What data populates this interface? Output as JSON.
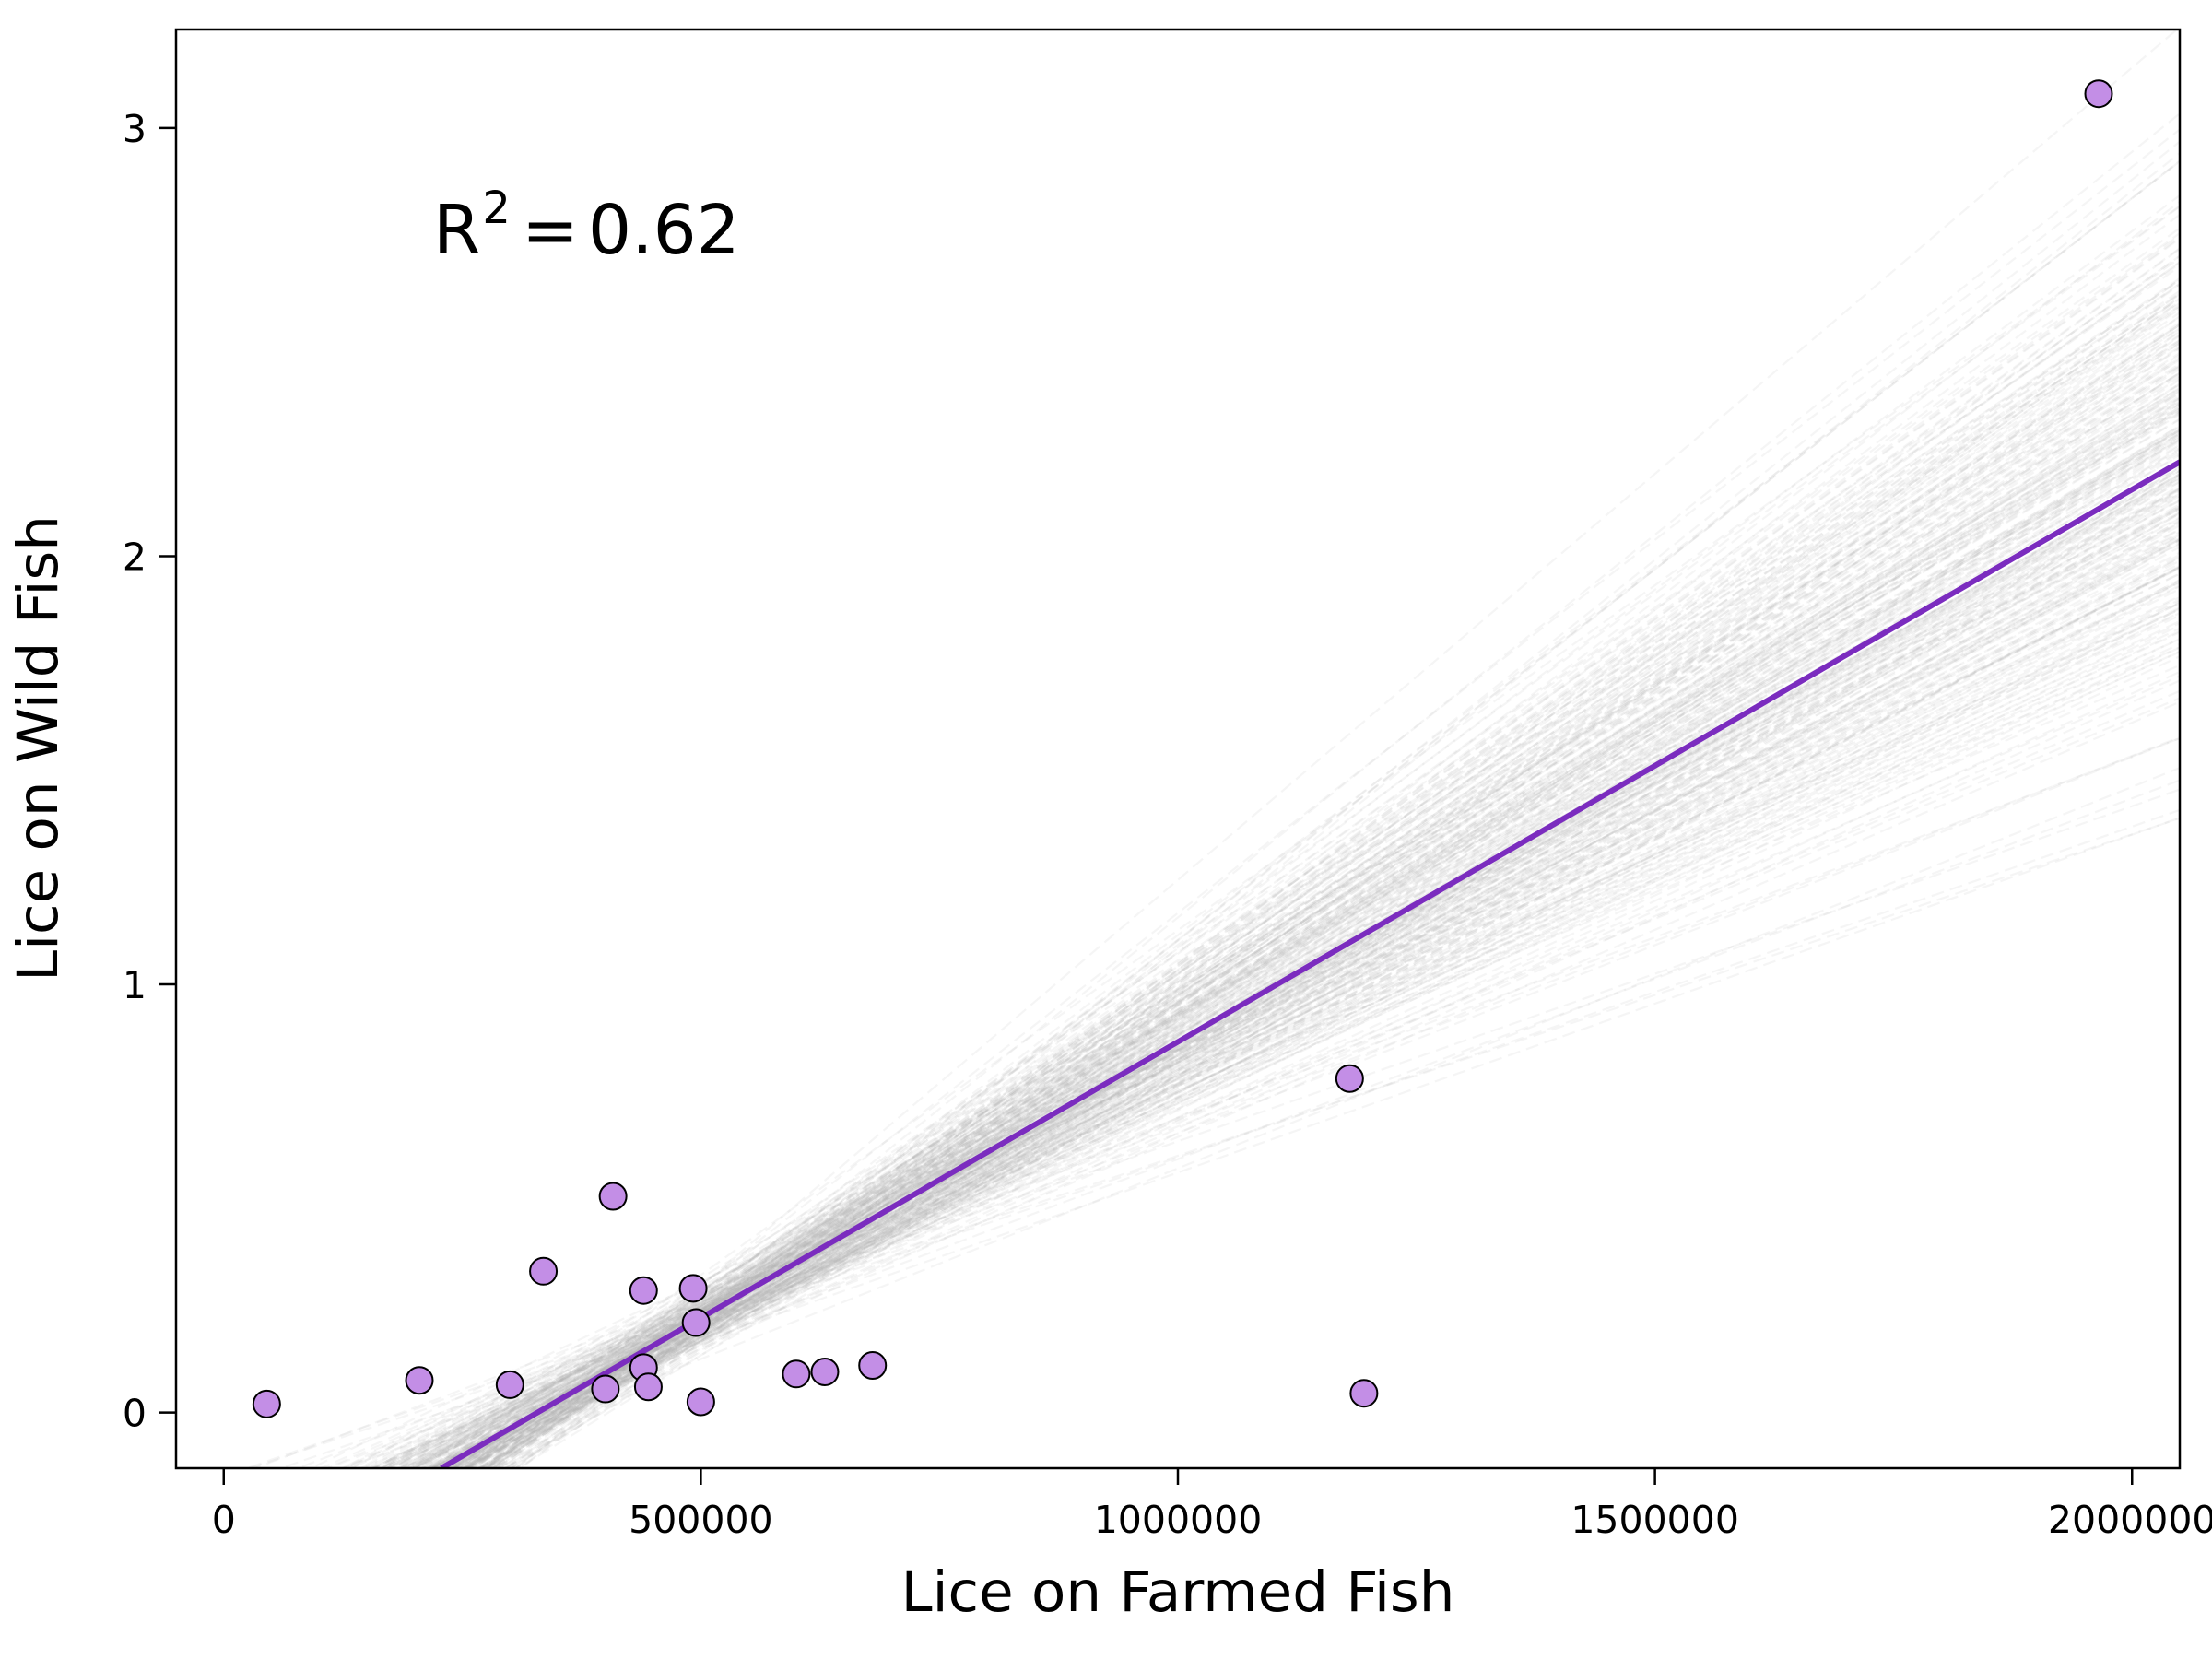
{
  "chart_data": {
    "type": "scatter",
    "title": "",
    "xlabel": "Lice on Farmed Fish",
    "ylabel": "Lice on Wild Fish",
    "xlim": [
      -50000,
      2050000
    ],
    "ylim": [
      -0.13,
      3.23
    ],
    "x_ticks": [
      0,
      500000,
      1000000,
      1500000,
      2000000
    ],
    "x_tick_labels": [
      "0",
      "500000",
      "1000000",
      "1500000",
      "2000000"
    ],
    "y_ticks": [
      0,
      1,
      2,
      3
    ],
    "y_tick_labels": [
      "0",
      "1",
      "2",
      "3"
    ],
    "grid": false,
    "legend": "none",
    "annotation": {
      "label": "R",
      "superscript": "2",
      "equals": "=",
      "value": "0.62",
      "placement": "top-left"
    },
    "colors": {
      "points": "#c38ee6",
      "point_edge": "#000000",
      "fit_line": "#7b2cbf",
      "bootstrap_lines": "#b4b4b4"
    },
    "series": [
      {
        "type": "scatter",
        "points": [
          {
            "x": 45000,
            "y": 0.02
          },
          {
            "x": 205000,
            "y": 0.075
          },
          {
            "x": 300000,
            "y": 0.065
          },
          {
            "x": 335000,
            "y": 0.33
          },
          {
            "x": 400000,
            "y": 0.055
          },
          {
            "x": 408000,
            "y": 0.505
          },
          {
            "x": 440000,
            "y": 0.285
          },
          {
            "x": 440000,
            "y": 0.105
          },
          {
            "x": 445000,
            "y": 0.06
          },
          {
            "x": 492000,
            "y": 0.29
          },
          {
            "x": 495000,
            "y": 0.21
          },
          {
            "x": 500000,
            "y": 0.025
          },
          {
            "x": 600000,
            "y": 0.09
          },
          {
            "x": 630000,
            "y": 0.095
          },
          {
            "x": 680000,
            "y": 0.11
          },
          {
            "x": 1180000,
            "y": 0.78
          },
          {
            "x": 1195000,
            "y": 0.045
          },
          {
            "x": 1965000,
            "y": 3.08
          }
        ]
      },
      {
        "type": "line",
        "role": "fit",
        "points": [
          {
            "x": 228000,
            "y": -0.13
          },
          {
            "x": 2050000,
            "y": 2.22
          }
        ]
      }
    ],
    "bootstrap_band": {
      "line_count": 300,
      "x_range": [
        -50000,
        2050000
      ],
      "center": {
        "intercept": -0.425,
        "slope": 1.29e-06
      },
      "spread": "widening toward large x"
    }
  }
}
